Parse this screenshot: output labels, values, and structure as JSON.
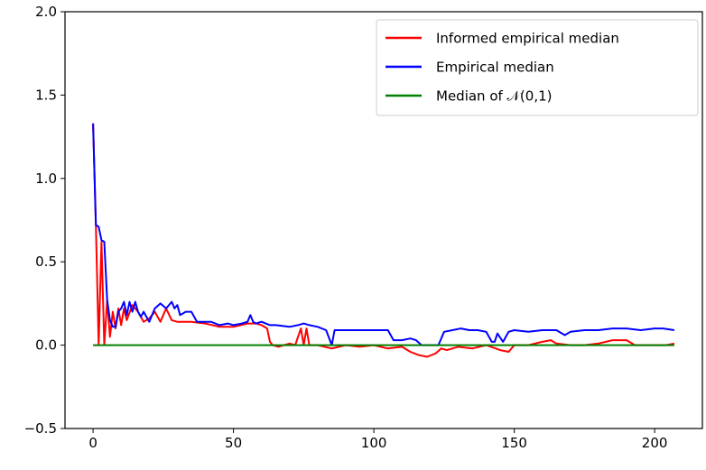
{
  "chart_data": {
    "type": "line",
    "title": "",
    "xlabel": "",
    "ylabel": "",
    "xlim": [
      -10,
      217
    ],
    "ylim": [
      -0.5,
      2.0
    ],
    "x_ticks": [
      0,
      50,
      100,
      150,
      200
    ],
    "x_tick_labels": [
      "0",
      "50",
      "100",
      "150",
      "200"
    ],
    "y_ticks": [
      -0.5,
      0.0,
      0.5,
      1.0,
      1.5,
      2.0
    ],
    "y_tick_labels": [
      "−0.5",
      "0.0",
      "0.5",
      "1.0",
      "1.5",
      "2.0"
    ],
    "grid": false,
    "legend_position": "top-right",
    "series": [
      {
        "name": "Informed empirical median",
        "color": "#ff0000",
        "points": [
          [
            0,
            1.33
          ],
          [
            1,
            0.72
          ],
          [
            2,
            0.0
          ],
          [
            3,
            0.62
          ],
          [
            4,
            0.0
          ],
          [
            5,
            0.27
          ],
          [
            6,
            0.05
          ],
          [
            7,
            0.2
          ],
          [
            8,
            0.1
          ],
          [
            9,
            0.22
          ],
          [
            10,
            0.12
          ],
          [
            11,
            0.22
          ],
          [
            12,
            0.15
          ],
          [
            14,
            0.24
          ],
          [
            16,
            0.2
          ],
          [
            18,
            0.14
          ],
          [
            20,
            0.16
          ],
          [
            22,
            0.2
          ],
          [
            24,
            0.14
          ],
          [
            26,
            0.22
          ],
          [
            28,
            0.15
          ],
          [
            30,
            0.14
          ],
          [
            35,
            0.14
          ],
          [
            40,
            0.13
          ],
          [
            45,
            0.11
          ],
          [
            50,
            0.11
          ],
          [
            55,
            0.13
          ],
          [
            58,
            0.13
          ],
          [
            60,
            0.12
          ],
          [
            62,
            0.1
          ],
          [
            63,
            0.02
          ],
          [
            64,
            0.0
          ],
          [
            66,
            -0.01
          ],
          [
            68,
            0.0
          ],
          [
            70,
            0.01
          ],
          [
            72,
            0.0
          ],
          [
            74,
            0.1
          ],
          [
            75,
            0.0
          ],
          [
            76,
            0.1
          ],
          [
            77,
            0.0
          ],
          [
            80,
            0.0
          ],
          [
            85,
            -0.02
          ],
          [
            90,
            0.0
          ],
          [
            95,
            -0.01
          ],
          [
            100,
            0.0
          ],
          [
            105,
            -0.02
          ],
          [
            110,
            -0.01
          ],
          [
            113,
            -0.04
          ],
          [
            116,
            -0.06
          ],
          [
            119,
            -0.07
          ],
          [
            122,
            -0.05
          ],
          [
            124,
            -0.02
          ],
          [
            126,
            -0.03
          ],
          [
            130,
            -0.01
          ],
          [
            135,
            -0.02
          ],
          [
            140,
            0.0
          ],
          [
            145,
            -0.03
          ],
          [
            148,
            -0.04
          ],
          [
            150,
            0.0
          ],
          [
            155,
            0.0
          ],
          [
            160,
            0.02
          ],
          [
            163,
            0.03
          ],
          [
            165,
            0.01
          ],
          [
            170,
            0.0
          ],
          [
            175,
            0.0
          ],
          [
            180,
            0.01
          ],
          [
            185,
            0.03
          ],
          [
            190,
            0.03
          ],
          [
            193,
            0.0
          ],
          [
            197,
            0.0
          ],
          [
            200,
            0.0
          ],
          [
            204,
            0.0
          ],
          [
            207,
            0.01
          ]
        ]
      },
      {
        "name": "Empirical median",
        "color": "#0000ff",
        "points": [
          [
            0,
            1.33
          ],
          [
            1,
            0.72
          ],
          [
            2,
            0.71
          ],
          [
            3,
            0.63
          ],
          [
            4,
            0.62
          ],
          [
            5,
            0.27
          ],
          [
            6,
            0.15
          ],
          [
            7,
            0.11
          ],
          [
            8,
            0.11
          ],
          [
            9,
            0.2
          ],
          [
            10,
            0.22
          ],
          [
            11,
            0.26
          ],
          [
            12,
            0.18
          ],
          [
            13,
            0.26
          ],
          [
            14,
            0.2
          ],
          [
            15,
            0.26
          ],
          [
            16,
            0.2
          ],
          [
            17,
            0.17
          ],
          [
            18,
            0.2
          ],
          [
            20,
            0.14
          ],
          [
            22,
            0.22
          ],
          [
            24,
            0.25
          ],
          [
            26,
            0.22
          ],
          [
            28,
            0.26
          ],
          [
            29,
            0.22
          ],
          [
            30,
            0.24
          ],
          [
            31,
            0.18
          ],
          [
            33,
            0.2
          ],
          [
            35,
            0.2
          ],
          [
            37,
            0.14
          ],
          [
            40,
            0.14
          ],
          [
            42,
            0.14
          ],
          [
            45,
            0.12
          ],
          [
            48,
            0.13
          ],
          [
            50,
            0.12
          ],
          [
            53,
            0.13
          ],
          [
            55,
            0.14
          ],
          [
            56,
            0.18
          ],
          [
            57,
            0.14
          ],
          [
            58,
            0.13
          ],
          [
            60,
            0.14
          ],
          [
            63,
            0.12
          ],
          [
            65,
            0.12
          ],
          [
            70,
            0.11
          ],
          [
            73,
            0.12
          ],
          [
            75,
            0.13
          ],
          [
            77,
            0.12
          ],
          [
            80,
            0.11
          ],
          [
            83,
            0.09
          ],
          [
            85,
            0.0
          ],
          [
            86,
            0.09
          ],
          [
            90,
            0.09
          ],
          [
            95,
            0.09
          ],
          [
            100,
            0.09
          ],
          [
            105,
            0.09
          ],
          [
            107,
            0.03
          ],
          [
            110,
            0.03
          ],
          [
            113,
            0.04
          ],
          [
            115,
            0.03
          ],
          [
            117,
            0.0
          ],
          [
            120,
            0.0
          ],
          [
            123,
            0.0
          ],
          [
            125,
            0.08
          ],
          [
            128,
            0.09
          ],
          [
            131,
            0.1
          ],
          [
            134,
            0.09
          ],
          [
            137,
            0.09
          ],
          [
            140,
            0.08
          ],
          [
            142,
            0.02
          ],
          [
            143,
            0.02
          ],
          [
            144,
            0.07
          ],
          [
            146,
            0.02
          ],
          [
            148,
            0.08
          ],
          [
            150,
            0.09
          ],
          [
            155,
            0.08
          ],
          [
            160,
            0.09
          ],
          [
            165,
            0.09
          ],
          [
            168,
            0.06
          ],
          [
            170,
            0.08
          ],
          [
            175,
            0.09
          ],
          [
            180,
            0.09
          ],
          [
            185,
            0.1
          ],
          [
            190,
            0.1
          ],
          [
            195,
            0.09
          ],
          [
            200,
            0.1
          ],
          [
            203,
            0.1
          ],
          [
            207,
            0.09
          ]
        ]
      },
      {
        "name": "Median of 𝒩(0,1)",
        "color": "#008000",
        "points": [
          [
            0,
            0.0
          ],
          [
            207,
            0.0
          ]
        ]
      }
    ]
  }
}
